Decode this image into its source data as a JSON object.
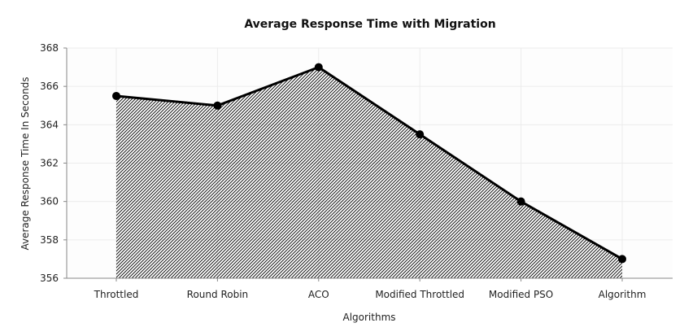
{
  "chart_data": {
    "type": "area",
    "title": "Average Response Time with Migration",
    "xlabel": "Algorithms",
    "ylabel": "Average Response Time In Seconds",
    "categories": [
      "Throttled",
      "Round Robin",
      "ACO",
      "Modified Throttled",
      "Modified PSO",
      "Algorithm"
    ],
    "series": [
      {
        "values": [
          365.5,
          365.0,
          367.0,
          363.5,
          360.0,
          357.0
        ]
      }
    ],
    "ylim": [
      356,
      368
    ],
    "yticks": [
      356,
      358,
      360,
      362,
      364,
      366,
      368
    ],
    "grid": true,
    "legend": "none",
    "colors": {
      "line": "#000000",
      "fill_pattern": "#000000",
      "plot_background": "#fdfdfd"
    }
  }
}
